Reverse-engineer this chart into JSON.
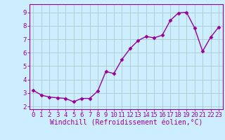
{
  "x": [
    0,
    1,
    2,
    3,
    4,
    5,
    6,
    7,
    8,
    9,
    10,
    11,
    12,
    13,
    14,
    15,
    16,
    17,
    18,
    19,
    20,
    21,
    22,
    23
  ],
  "y": [
    3.2,
    2.85,
    2.7,
    2.65,
    2.6,
    2.35,
    2.6,
    2.6,
    3.15,
    4.6,
    4.45,
    5.5,
    6.3,
    6.9,
    7.2,
    7.1,
    7.3,
    8.4,
    8.95,
    9.0,
    7.85,
    6.1,
    7.15,
    7.9
  ],
  "line_color": "#990099",
  "marker": "D",
  "marker_size": 2.5,
  "bg_color": "#cceeff",
  "grid_color": "#aacccc",
  "xlabel": "Windchill (Refroidissement éolien,°C)",
  "xlabel_color": "#990099",
  "xlabel_fontsize": 7,
  "ylabel_ticks": [
    2,
    3,
    4,
    5,
    6,
    7,
    8,
    9
  ],
  "xlim": [
    -0.5,
    23.5
  ],
  "ylim": [
    1.8,
    9.6
  ],
  "tick_color": "#990099",
  "tick_fontsize": 6.5,
  "spine_color": "#990099",
  "linewidth": 1.0
}
